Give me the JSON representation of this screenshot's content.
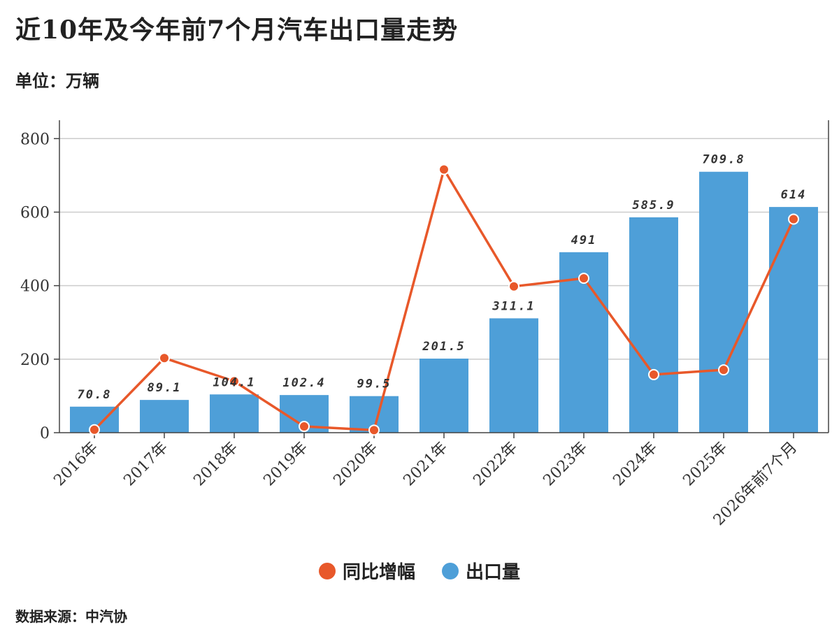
{
  "title": "近10年及今年前7个月汽车出口量走势",
  "unit": "单位：万辆",
  "source": "数据来源：中汽协",
  "legend": [
    {
      "label": "同比增幅",
      "color": "#e8582a"
    },
    {
      "label": "出口量",
      "color": "#4e9fd8"
    }
  ],
  "colors": {
    "bar": "#4e9fd8",
    "line": "#e8582a",
    "grid": "#cccccc",
    "axis": "#444444"
  },
  "chart_data": {
    "type": "bar",
    "categories": [
      "2016年",
      "2017年",
      "2018年",
      "2019年",
      "2020年",
      "2021年",
      "2022年",
      "2023年",
      "2024年",
      "2025年",
      "2026年前7个月"
    ],
    "ylim": [
      0,
      850
    ],
    "yticks": [
      0,
      200,
      400,
      600,
      800
    ],
    "grid": true,
    "legend_position": "bottom",
    "series": [
      {
        "name": "出口量",
        "type": "bar",
        "values": [
          70.8,
          89.1,
          104.1,
          102.4,
          99.5,
          201.5,
          311.1,
          491,
          585.9,
          709.8,
          614
        ],
        "labels": [
          "70.8",
          "89.1",
          "104.1",
          "102.4",
          "99.5",
          "201.5",
          "311.1",
          "491",
          "585.9",
          "709.8",
          "614"
        ]
      },
      {
        "name": "同比增幅",
        "type": "line",
        "values": [
          8,
          203,
          140,
          17,
          7,
          716,
          398,
          420,
          158,
          171,
          581
        ]
      }
    ]
  }
}
